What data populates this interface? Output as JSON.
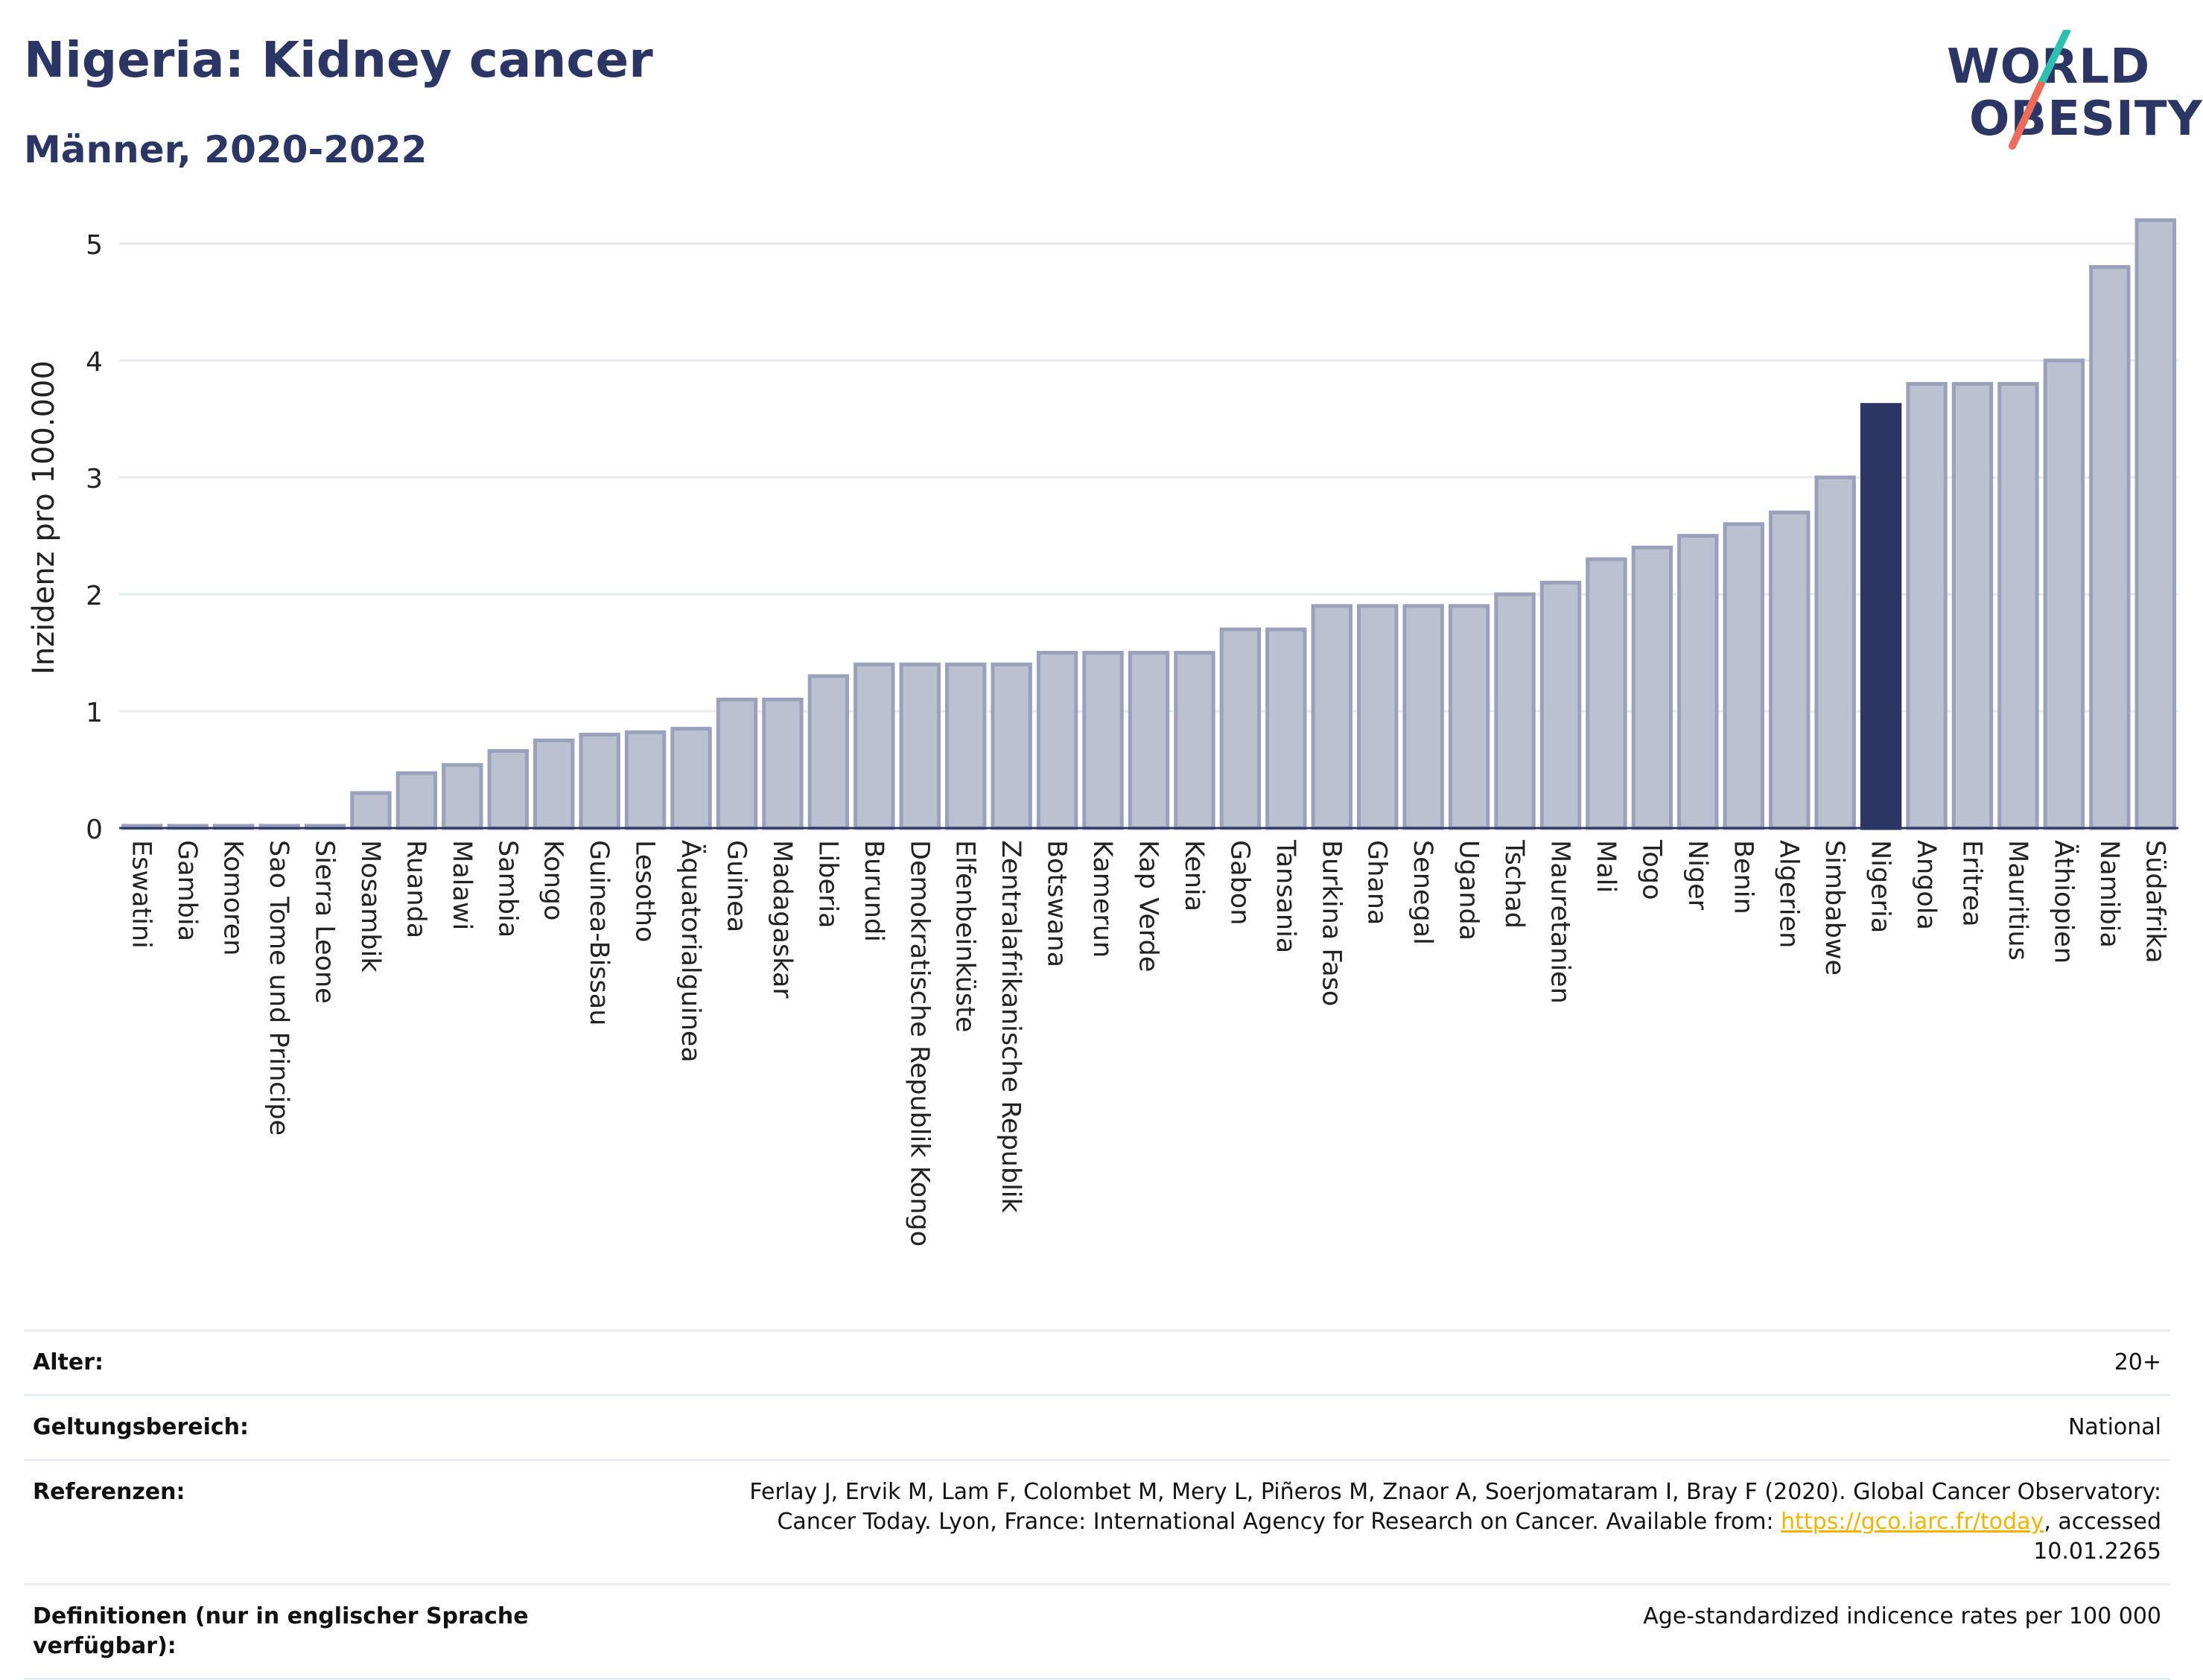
{
  "header": {
    "title": "Nigeria: Kidney cancer",
    "subtitle": "Männer, 2020-2022"
  },
  "logo": {
    "line1": "WORLD",
    "line2": "OBESITY"
  },
  "chart_data": {
    "type": "bar",
    "ylabel": "Inzidenz pro 100.000",
    "xlabel": "",
    "ylim": [
      0,
      5.3
    ],
    "yticks": [
      0,
      1,
      2,
      3,
      4,
      5
    ],
    "grid": true,
    "categories": [
      "Eswatini",
      "Gambia",
      "Komoren",
      "Sao Tome und Principe",
      "Sierra Leone",
      "Mosambik",
      "Ruanda",
      "Malawi",
      "Sambia",
      "Kongo",
      "Guinea-Bissau",
      "Lesotho",
      "Äquatorialguinea",
      "Guinea",
      "Madagaskar",
      "Liberia",
      "Burundi",
      "Demokratische Republik Kongo",
      "Elfenbeinküste",
      "Zentralafrikanische Republik",
      "Botswana",
      "Kamerun",
      "Kap Verde",
      "Kenia",
      "Gabon",
      "Tansania",
      "Burkina Faso",
      "Ghana",
      "Senegal",
      "Uganda",
      "Tschad",
      "Mauretanien",
      "Mali",
      "Togo",
      "Niger",
      "Benin",
      "Algerien",
      "Simbabwe",
      "Nigeria",
      "Angola",
      "Eritrea",
      "Mauritius",
      "Äthiopien",
      "Namibia",
      "Südafrika"
    ],
    "values": [
      0.02,
      0.02,
      0.02,
      0.02,
      0.02,
      0.3,
      0.47,
      0.54,
      0.66,
      0.75,
      0.8,
      0.82,
      0.85,
      1.1,
      1.1,
      1.3,
      1.4,
      1.4,
      1.4,
      1.4,
      1.5,
      1.5,
      1.5,
      1.5,
      1.7,
      1.7,
      1.9,
      1.9,
      1.9,
      1.9,
      2.0,
      2.1,
      2.3,
      2.4,
      2.5,
      2.6,
      2.7,
      3.0,
      3.62,
      3.8,
      3.8,
      3.8,
      4.0,
      4.8,
      5.2
    ],
    "highlight": "Nigeria",
    "colors": {
      "bar": "#bcc1d1",
      "bar_border": "#9aa1bb",
      "highlight": "#2b3664",
      "grid": "#e6e8ef",
      "axis": "#2b3664"
    }
  },
  "meta": {
    "age_label": "Alter:",
    "age_value": "20+",
    "scope_label": "Geltungsbereich:",
    "scope_value": "National",
    "ref_label": "Referenzen:",
    "ref_text1": "Ferlay J, Ervik M, Lam F, Colombet M, Mery L, Piñeros M, Znaor A, Soerjomataram I, Bray F (2020). Global Cancer Observatory: Cancer Today. Lyon, France: International Agency for Research on Cancer. Available from: ",
    "ref_link": "https://gco.iarc.fr/today",
    "ref_text2": ", accessed 10.01.2265",
    "def_label": "Definitionen (nur in englischer Sprache verfügbar):",
    "def_value": "Age-standardized indicence rates per 100 000"
  }
}
